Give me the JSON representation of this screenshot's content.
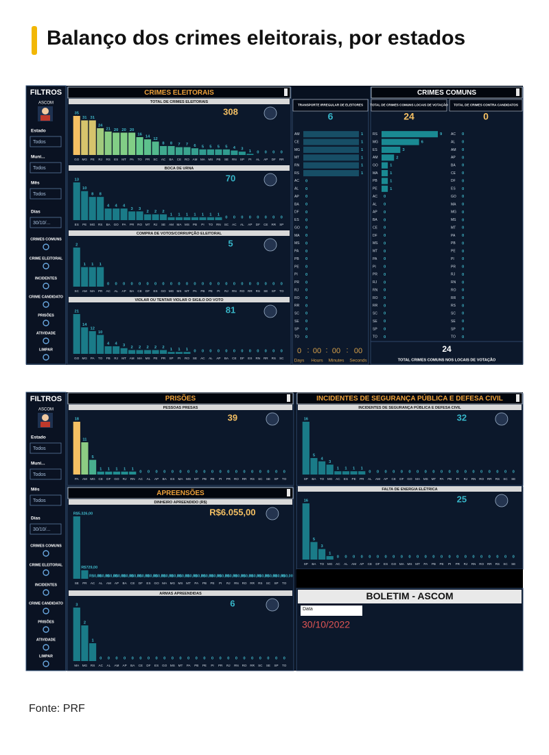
{
  "header": {
    "title": "Balanço dos crimes eleitorais, por estados"
  },
  "source": "Fonte: PRF",
  "sidebar": {
    "title": "FILTROS",
    "user": "ASCOM",
    "filters": [
      {
        "label": "Estado",
        "value": "Todos"
      },
      {
        "label": "Muni...",
        "value": "Todos"
      },
      {
        "label": "Mês",
        "value": "Todos"
      },
      {
        "label": "Dias",
        "value": "30/10/..."
      }
    ],
    "nav": [
      "CRIMES COMUNS",
      "CRIME ELEITORAL",
      "INCIDENTES",
      "CRIME CANDIDATO",
      "PRISÕES",
      "ATIVIDADE",
      "LIMPAR"
    ]
  },
  "sections": [
    "CRIMES ELEITORAIS",
    "CRIMES COMUNS",
    "PRISÕES",
    "APREENSÕES",
    "INCIDENTES DE SEGURANÇA PÚBLICA E DEFESA CIVIL"
  ],
  "charts": [
    {
      "type": "bar",
      "title": "TOTAL DE CRIMES ELEITORAIS",
      "total": 308,
      "categories": [
        "GO",
        "MG",
        "PE",
        "RJ",
        "RS",
        "ES",
        "MT",
        "PA",
        "TO",
        "PR",
        "SC",
        "AC",
        "BA",
        "CE",
        "RO",
        "AM",
        "MA",
        "MS",
        "PB",
        "SE",
        "RN",
        "SP",
        "PI",
        "AL",
        "AP",
        "DF",
        "RR"
      ],
      "values": [
        35,
        31,
        31,
        24,
        21,
        20,
        20,
        20,
        16,
        14,
        12,
        8,
        8,
        7,
        7,
        6,
        5,
        5,
        5,
        5,
        4,
        3,
        1,
        0,
        0,
        0,
        0
      ],
      "ylim": [
        0,
        35
      ],
      "color_scale": [
        "#f5c063",
        "#6fd08c",
        "#178690"
      ]
    },
    {
      "type": "bar",
      "title": "BOCA DE URNA",
      "total": 70,
      "categories": [
        "ES",
        "PE",
        "MG",
        "RS",
        "BA",
        "GO",
        "PA",
        "PR",
        "RO",
        "MT",
        "RJ",
        "SE",
        "AM",
        "MA",
        "MS",
        "PB",
        "PI",
        "TO",
        "RN",
        "SC",
        "AC",
        "AL",
        "AP",
        "DF",
        "CE",
        "RR",
        "SP"
      ],
      "values": [
        13,
        10,
        8,
        8,
        4,
        4,
        4,
        3,
        3,
        2,
        2,
        2,
        1,
        1,
        1,
        1,
        1,
        1,
        1,
        0,
        0,
        0,
        0,
        0,
        0,
        0,
        0
      ],
      "ylim": [
        0,
        13
      ],
      "color": "#1a7b88"
    },
    {
      "type": "bar",
      "title": "COMPRA DE VOTOS/CORRUPÇÃO ELEITORAL",
      "total": 5,
      "categories": [
        "SC",
        "AM",
        "MA",
        "PR",
        "AC",
        "AL",
        "AP",
        "BA",
        "CE",
        "DF",
        "ES",
        "GO",
        "MG",
        "MS",
        "MT",
        "PA",
        "PB",
        "PE",
        "PI",
        "RJ",
        "RN",
        "RO",
        "RR",
        "RS",
        "SE",
        "SP",
        "TO"
      ],
      "values": [
        2,
        1,
        1,
        1,
        0,
        0,
        0,
        0,
        0,
        0,
        0,
        0,
        0,
        0,
        0,
        0,
        0,
        0,
        0,
        0,
        0,
        0,
        0,
        0,
        0,
        0,
        0
      ],
      "ylim": [
        0,
        2
      ],
      "color": "#1a7b88"
    },
    {
      "type": "bar",
      "title": "VIOLAR OU TENTAR VIOLAR O SIGILO DO VOTO",
      "total": 81,
      "categories": [
        "GO",
        "MG",
        "PA",
        "TO",
        "PB",
        "RJ",
        "MT",
        "AM",
        "MA",
        "MS",
        "PE",
        "PR",
        "SP",
        "PI",
        "RO",
        "SE",
        "AC",
        "AL",
        "AP",
        "BA",
        "CE",
        "DF",
        "ES",
        "RN",
        "RR",
        "RS",
        "SC"
      ],
      "values": [
        21,
        14,
        12,
        10,
        4,
        4,
        3,
        2,
        2,
        2,
        2,
        2,
        1,
        1,
        1,
        0,
        0,
        0,
        0,
        0,
        0,
        0,
        0,
        0,
        0,
        0,
        0
      ],
      "ylim": [
        0,
        21
      ],
      "color": "#1a7b88"
    },
    {
      "type": "hbar",
      "title": "TRANSPORTE IRREGULAR DE ELEITORES",
      "total": 6,
      "categories": [
        "AM",
        "CE",
        "MG",
        "MT",
        "RN",
        "RS",
        "AC",
        "AL",
        "AP",
        "BA",
        "DF",
        "ES",
        "GO",
        "MA",
        "MS",
        "PA",
        "PB",
        "PE",
        "PI",
        "PR",
        "RJ",
        "RO",
        "RR",
        "SC",
        "SE",
        "SP",
        "TO"
      ],
      "values": [
        1,
        1,
        1,
        1,
        1,
        1,
        0,
        0,
        0,
        0,
        0,
        0,
        0,
        0,
        0,
        0,
        0,
        0,
        0,
        0,
        0,
        0,
        0,
        0,
        0,
        0,
        0
      ],
      "xlim": [
        0,
        1
      ],
      "color": "#174e66"
    },
    {
      "type": "hbar",
      "title": "TOTAL DE CRIMES COMUNS LOCAIS DE VOTAÇÃO",
      "total": 24,
      "categories": [
        "RS",
        "MG",
        "ES",
        "AM",
        "GO",
        "MA",
        "PB",
        "PE",
        "AC",
        "AL",
        "AP",
        "BA",
        "CE",
        "DF",
        "MS",
        "MT",
        "PA",
        "PI",
        "PR",
        "RJ",
        "RN",
        "RO",
        "RR",
        "SC",
        "SE",
        "SP",
        "TO"
      ],
      "values": [
        9,
        6,
        3,
        2,
        1,
        1,
        1,
        1,
        0,
        0,
        0,
        0,
        0,
        0,
        0,
        0,
        0,
        0,
        0,
        0,
        0,
        0,
        0,
        0,
        0,
        0,
        0
      ],
      "xlim": [
        0,
        9
      ],
      "color": "#1a8a93"
    },
    {
      "type": "hbar",
      "title": "TOTAL DE CRIMES CONTRA CANDIDATOS",
      "total": 0,
      "categories": [
        "AC",
        "AL",
        "AM",
        "AP",
        "BA",
        "CE",
        "DF",
        "ES",
        "GO",
        "MA",
        "MG",
        "MS",
        "MT",
        "PA",
        "PB",
        "PE",
        "PI",
        "PR",
        "RJ",
        "RN",
        "RO",
        "RR",
        "RS",
        "SC",
        "SE",
        "SP",
        "TO"
      ],
      "values": [
        0,
        0,
        0,
        0,
        0,
        0,
        0,
        0,
        0,
        0,
        0,
        0,
        0,
        0,
        0,
        0,
        0,
        0,
        0,
        0,
        0,
        0,
        0,
        0,
        0,
        0,
        0
      ],
      "xlim": [
        0,
        1
      ],
      "color": "#1a8a93"
    },
    {
      "type": "bar",
      "title": "PESSOAS PRESAS",
      "total": 39,
      "categories": [
        "PA",
        "AM",
        "MG",
        "CE",
        "DF",
        "GO",
        "RJ",
        "RN",
        "AC",
        "AL",
        "AP",
        "BA",
        "ES",
        "MA",
        "MS",
        "MT",
        "PB",
        "PE",
        "PI",
        "PR",
        "RO",
        "RR",
        "RS",
        "SC",
        "SE",
        "SP",
        "TO"
      ],
      "values": [
        18,
        11,
        5,
        1,
        1,
        1,
        1,
        1,
        0,
        0,
        0,
        0,
        0,
        0,
        0,
        0,
        0,
        0,
        0,
        0,
        0,
        0,
        0,
        0,
        0,
        0,
        0
      ],
      "ylim": [
        0,
        18
      ],
      "color_scale": [
        "#f5c063",
        "#6fd08c",
        "#178690"
      ]
    },
    {
      "type": "bar",
      "title": "DINHEIRO APREENDIDO (R$)",
      "total": 6055,
      "total_label": "R$6.055,00",
      "categories": [
        "SE",
        "PR",
        "AC",
        "AL",
        "AM",
        "AP",
        "BA",
        "CE",
        "DF",
        "ES",
        "GO",
        "MA",
        "MG",
        "MS",
        "MT",
        "PA",
        "PB",
        "PE",
        "PI",
        "RJ",
        "RN",
        "RO",
        "RR",
        "RS",
        "SC",
        "SP",
        "TO"
      ],
      "values": [
        5326,
        729,
        0,
        0,
        0,
        0,
        0,
        0,
        0,
        0,
        0,
        0,
        0,
        0,
        0,
        0,
        0,
        0,
        0,
        0,
        0,
        0,
        0,
        0,
        0,
        0,
        0
      ],
      "value_labels": [
        "R$5.326,00",
        "R$729,00",
        "R$0,00",
        "R$0,00",
        "R$0,00",
        "R$0,00",
        "R$0,00",
        "R$0,00",
        "R$0,00",
        "R$0,00",
        "R$0,00",
        "R$0,00",
        "R$0,00",
        "R$0,00",
        "R$0,00",
        "R$0,00",
        "R$0,00",
        "R$0,00",
        "R$0,00",
        "R$0,00",
        "R$0,00",
        "R$0,00",
        "R$0,00",
        "R$0,00",
        "R$0,00",
        "R$0,00",
        "R$0,00"
      ],
      "ylim": [
        0,
        5326
      ],
      "color": "#1a7b88"
    },
    {
      "type": "bar",
      "title": "ARMAS APREENDIDAS",
      "total": 6,
      "categories": [
        "MA",
        "MG",
        "RS",
        "AC",
        "AL",
        "AM",
        "AP",
        "BA",
        "CE",
        "DF",
        "ES",
        "GO",
        "MS",
        "MT",
        "PA",
        "PB",
        "PE",
        "PI",
        "PR",
        "RJ",
        "RN",
        "RO",
        "RR",
        "SC",
        "SE",
        "SP",
        "TO"
      ],
      "values": [
        3,
        2,
        1,
        0,
        0,
        0,
        0,
        0,
        0,
        0,
        0,
        0,
        0,
        0,
        0,
        0,
        0,
        0,
        0,
        0,
        0,
        0,
        0,
        0,
        0,
        0,
        0
      ],
      "ylim": [
        0,
        3
      ],
      "color": "#1a7b88"
    },
    {
      "type": "bar",
      "title": "INCIDENTES DE SEGURANÇA PÚBLICA E DEFESA CIVIL",
      "total": 32,
      "categories": [
        "SP",
        "BA",
        "TO",
        "MG",
        "AC",
        "ES",
        "PE",
        "PR",
        "AL",
        "AM",
        "AP",
        "CE",
        "DF",
        "GO",
        "MA",
        "MS",
        "MT",
        "PA",
        "PB",
        "PI",
        "RJ",
        "RN",
        "RO",
        "RR",
        "RS",
        "SC",
        "SE"
      ],
      "values": [
        16,
        5,
        4,
        3,
        1,
        1,
        1,
        1,
        0,
        0,
        0,
        0,
        0,
        0,
        0,
        0,
        0,
        0,
        0,
        0,
        0,
        0,
        0,
        0,
        0,
        0,
        0
      ],
      "ylim": [
        0,
        16
      ],
      "color": "#1a7b88"
    },
    {
      "type": "bar",
      "title": "FALTA DE ENERGIA ELÉTRICA",
      "total": 25,
      "categories": [
        "SP",
        "BA",
        "TO",
        "MG",
        "AC",
        "AL",
        "AM",
        "AP",
        "CE",
        "DF",
        "ES",
        "GO",
        "MA",
        "MS",
        "MT",
        "PA",
        "PB",
        "PE",
        "PI",
        "PR",
        "RJ",
        "RN",
        "RO",
        "RR",
        "RS",
        "SC",
        "SE"
      ],
      "values": [
        16,
        5,
        3,
        1,
        0,
        0,
        0,
        0,
        0,
        0,
        0,
        0,
        0,
        0,
        0,
        0,
        0,
        0,
        0,
        0,
        0,
        0,
        0,
        0,
        0,
        0,
        0
      ],
      "ylim": [
        0,
        16
      ],
      "color": "#1a7b88"
    }
  ],
  "timer": {
    "values": [
      "0",
      "00",
      "00",
      "00"
    ],
    "separator": ":",
    "units": [
      "Days",
      "Hours",
      "Minutes",
      "Seconds"
    ]
  },
  "footer_comuns": {
    "value": 24,
    "label": "TOTAL CRIMES COMUNS NOS LOCAIS DE VOTAÇÃO"
  },
  "boletim": {
    "title": "BOLETIM - ASCOM",
    "field": "Data",
    "date": "30/10/2022"
  }
}
